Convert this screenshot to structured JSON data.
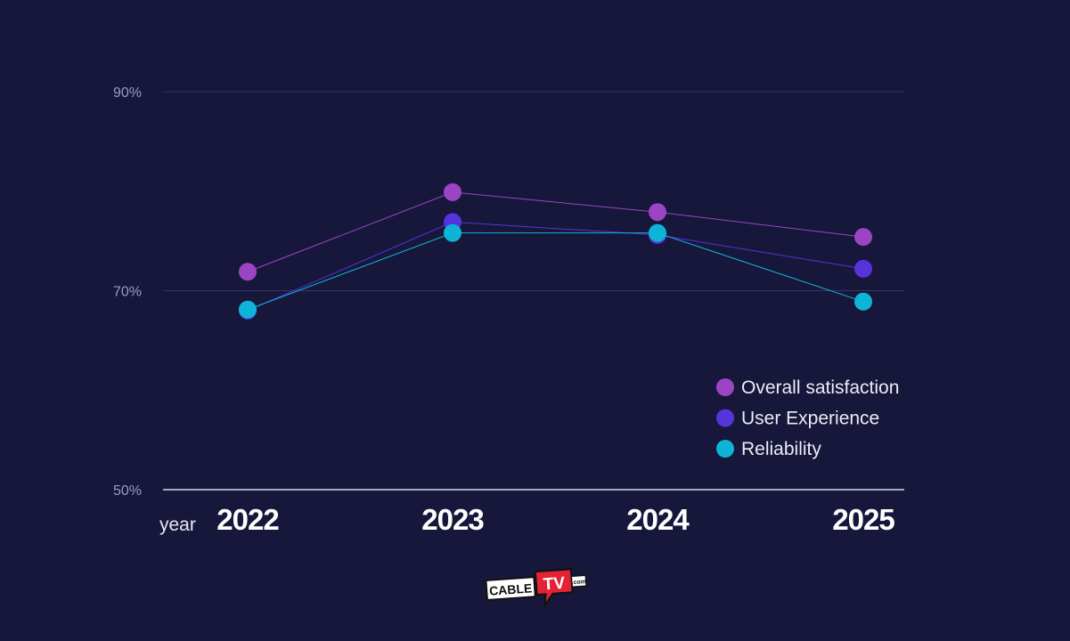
{
  "chart_data": {
    "type": "line",
    "xlabel": "year",
    "ylabel": "",
    "title": "",
    "categories": [
      "2022",
      "2023",
      "2024",
      "2025"
    ],
    "ylim": [
      50,
      90
    ],
    "yticks": [
      "50%",
      "70%",
      "90%"
    ],
    "ytick_values": [
      50,
      70,
      90
    ],
    "grid": true,
    "legend_position": "bottom-right",
    "series": [
      {
        "name": "Overall satisfaction",
        "color": "#9b45c4",
        "values": [
          71.9,
          79.9,
          77.9,
          75.4
        ]
      },
      {
        "name": "User Experience",
        "color": "#5733dc",
        "values": [
          68.0,
          76.9,
          75.6,
          72.2
        ]
      },
      {
        "name": "Reliability",
        "color": "#0db4d8",
        "values": [
          68.1,
          75.8,
          75.8,
          68.9
        ]
      }
    ]
  },
  "logo": {
    "text": "CABLETV.com"
  }
}
